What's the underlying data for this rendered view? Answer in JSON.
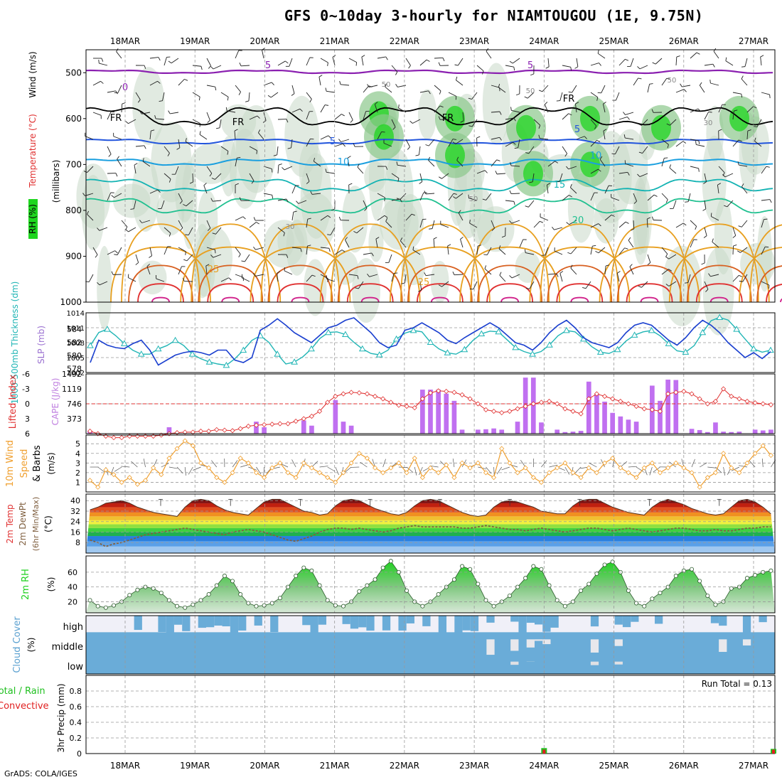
{
  "header": {
    "title": "GFS 0~10day 3-hourly for NIAMTOUGOU (1E, 9.75N)"
  },
  "footer": {
    "credit": "GrADS: COLA/IGES"
  },
  "colors": {
    "rh_green": "#1fd61f",
    "barb": "#202020",
    "freezing": "#000000",
    "temp5": "#8a1fb0",
    "temp_blue": "#2255dd",
    "temp_mid": "#1a9fdf",
    "temp_teal": "#13b3b3",
    "temp_green": "#20c090",
    "temp_orange": "#e8a020",
    "temp_red": "#e03030",
    "slp": "#1a3fcf",
    "thickness": "#20b5b5",
    "lifted": "#e03030",
    "cape": "#c070f0",
    "wind": "#f0a030",
    "rh2m": "#20d020",
    "cloud": "#6aacd8",
    "cloud_bg": "#f0f0f8",
    "precip_total": "#20c020",
    "precip_conv": "#e02020"
  },
  "chart_data": [
    {
      "type": "heatmap",
      "panel": "upper-air",
      "ylabel_parts": [
        "RH (%)",
        "Temperature (°C)",
        "Wind (m/s)"
      ],
      "ylabel_units": "(millibars)",
      "x_dates": [
        "18MAR",
        "19MAR",
        "20MAR",
        "21MAR",
        "22MAR",
        "23MAR",
        "24MAR",
        "25MAR",
        "26MAR",
        "27MAR"
      ],
      "y_ticks": [
        500,
        600,
        700,
        800,
        900,
        1000
      ],
      "ylim": [
        450,
        1000
      ],
      "contour_labels": [
        {
          "text": "5",
          "kind": "temp5"
        },
        {
          "text": "5",
          "kind": "temp5"
        },
        {
          "text": "0",
          "kind": "temp5"
        },
        {
          "text": "FR",
          "kind": "freezing"
        },
        {
          "text": "FR",
          "kind": "freezing"
        },
        {
          "text": "FR",
          "kind": "freezing"
        },
        {
          "text": "FR",
          "kind": "freezing"
        },
        {
          "text": "5",
          "kind": "temp_blue"
        },
        {
          "text": "5",
          "kind": "temp_blue"
        },
        {
          "text": "10",
          "kind": "temp_mid"
        },
        {
          "text": "10",
          "kind": "temp_mid"
        },
        {
          "text": "15",
          "kind": "temp_teal"
        },
        {
          "text": "20",
          "kind": "temp_green"
        },
        {
          "text": "25",
          "kind": "temp_orange"
        },
        {
          "text": "25",
          "kind": "temp_orange"
        },
        {
          "text": "30",
          "kind": "rh"
        },
        {
          "text": "30",
          "kind": "rh"
        },
        {
          "text": "50",
          "kind": "rh"
        },
        {
          "text": "50",
          "kind": "rh"
        },
        {
          "text": "50",
          "kind": "rh"
        },
        {
          "text": "50",
          "kind": "rh"
        }
      ]
    },
    {
      "type": "line",
      "panel": "slp-thickness",
      "ylabel_left": "1000-500mb Thickness (dm)",
      "ylabel_right": "SLP (mb)",
      "left_ticks": [
        578,
        580,
        582,
        584
      ],
      "right_ticks": [
        1002,
        1005,
        1008,
        1011,
        1014
      ],
      "right_ylim": [
        1002,
        1014
      ],
      "left_ylim": [
        577.4,
        586.5
      ],
      "series": [
        {
          "name": "SLP (mb)",
          "values": [
            1004.0,
            1008.5,
            1007.5,
            1007.0,
            1006.8,
            1007.8,
            1008.5,
            1006.5,
            1003.5,
            1004.5,
            1005.5,
            1006.0,
            1006.3,
            1006.0,
            1005.5,
            1006.5,
            1006.5,
            1004.5,
            1004.0,
            1005.0,
            1010.5,
            1011.5,
            1012.8,
            1011.5,
            1010.0,
            1009.0,
            1008.0,
            1009.5,
            1011.0,
            1011.5,
            1012.5,
            1013.0,
            1011.5,
            1010.0,
            1008.0,
            1007.0,
            1007.5,
            1010.5,
            1011.0,
            1012.0,
            1011.0,
            1010.0,
            1008.5,
            1007.8,
            1009.0,
            1010.0,
            1011.0,
            1012.0,
            1011.0,
            1009.5,
            1008.0,
            1007.5,
            1006.5,
            1008.0,
            1010.0,
            1011.5,
            1012.5,
            1011.0,
            1009.0,
            1008.0,
            1007.5,
            1007.0,
            1008.0,
            1010.0,
            1011.5,
            1012.0,
            1011.5,
            1010.0,
            1008.5,
            1007.5,
            1009.0,
            1011.0,
            1012.5,
            1011.5,
            1010.0,
            1008.0,
            1006.5,
            1005.0,
            1006.0,
            1004.8,
            1006.2
          ]
        },
        {
          "name": "Thickness (dm)",
          "values": [
            581.5,
            583.5,
            584.0,
            583.0,
            581.8,
            580.8,
            580.2,
            580.2,
            581.0,
            581.5,
            582.3,
            581.5,
            580.2,
            579.5,
            579.0,
            578.7,
            578.5,
            579.5,
            580.8,
            582.3,
            583.0,
            582.0,
            580.2,
            578.7,
            579.0,
            579.8,
            581.0,
            582.6,
            583.5,
            583.6,
            583.2,
            582.0,
            581.0,
            580.3,
            580.1,
            580.8,
            582.5,
            583.4,
            583.8,
            583.6,
            582.0,
            581.0,
            580.4,
            580.2,
            580.9,
            582.3,
            583.3,
            583.7,
            583.6,
            582.4,
            581.2,
            580.6,
            580.2,
            580.6,
            581.6,
            583.0,
            583.8,
            583.6,
            582.5,
            581.3,
            580.5,
            580.3,
            580.9,
            582.2,
            583.1,
            583.6,
            583.8,
            583.0,
            581.8,
            580.7,
            580.5,
            581.5,
            583.5,
            585.3,
            585.8,
            585.4,
            584.0,
            582.5,
            581.0,
            580.5,
            580.8
          ]
        }
      ]
    },
    {
      "type": "bar",
      "panel": "cape-lifted-index",
      "ylabel_left": "Lifted Index",
      "ylabel_right": "CAPE (J/kg)",
      "li_ticks": [
        6,
        3,
        0,
        -3,
        -6
      ],
      "cape_ticks": [
        373,
        746,
        1119,
        1492
      ],
      "cape_ylim": [
        0,
        1492
      ],
      "series": [
        {
          "name": "CAPE (J/kg)",
          "values": [
            60,
            0,
            0,
            0,
            0,
            0,
            0,
            0,
            0,
            0,
            160,
            0,
            0,
            0,
            0,
            0,
            0,
            0,
            0,
            0,
            0,
            300,
            160,
            0,
            0,
            0,
            0,
            330,
            200,
            0,
            0,
            840,
            300,
            200,
            0,
            0,
            0,
            0,
            0,
            0,
            0,
            0,
            1100,
            1100,
            1100,
            1000,
            820,
            100,
            0,
            100,
            110,
            130,
            100,
            0,
            300,
            1400,
            1400,
            280,
            0,
            100,
            40,
            50,
            70,
            1300,
            980,
            800,
            520,
            430,
            350,
            300,
            0,
            1200,
            820,
            1350,
            1340,
            0,
            120,
            90,
            40,
            280,
            50,
            40,
            50,
            0,
            100,
            80,
            100
          ]
        },
        {
          "name": "Lifted Index",
          "values": [
            5.5,
            6.0,
            6.5,
            6.8,
            6.8,
            6.5,
            6.5,
            6.5,
            6.5,
            6.3,
            6.0,
            5.8,
            5.7,
            5.7,
            5.5,
            5.5,
            5.2,
            5.3,
            5.4,
            5.0,
            4.5,
            4.3,
            4.2,
            4.1,
            4.0,
            4.0,
            3.5,
            3.0,
            2.5,
            1.5,
            -0.3,
            -1.5,
            -2.0,
            -2.3,
            -2.2,
            -2.0,
            -1.5,
            -1.0,
            -0.3,
            0.3,
            0.5,
            0.8,
            -1.0,
            -2.2,
            -2.6,
            -2.5,
            -2.3,
            -1.8,
            -1.0,
            0.0,
            1.2,
            1.5,
            1.8,
            1.5,
            1.0,
            0.5,
            0.0,
            -0.3,
            -0.5,
            0.0,
            1.0,
            1.5,
            2.0,
            -1.0,
            -2.0,
            -1.5,
            -1.0,
            -0.5,
            0.0,
            0.5,
            1.0,
            1.2,
            1.5,
            -2.0,
            -2.3,
            -2.5,
            -2.0,
            -1.0,
            0.0,
            -0.5,
            -3.0,
            -1.5,
            -1.0,
            -0.5,
            -0.2,
            0.0,
            0.2
          ]
        }
      ]
    },
    {
      "type": "line",
      "panel": "wind",
      "ylabel": "10m Wind Speed (m/s) & Barbs",
      "ylim": [
        0,
        5.9
      ],
      "y_ticks": [
        1,
        2,
        3,
        4,
        5
      ],
      "series": [
        {
          "name": "10m Wind Speed (m/s)",
          "values": [
            1.2,
            0.5,
            2.3,
            1.8,
            1.0,
            1.5,
            0.8,
            1.2,
            2.5,
            1.8,
            3.5,
            4.5,
            5.3,
            4.8,
            3.0,
            2.5,
            1.5,
            1.0,
            2.0,
            3.5,
            3.0,
            2.0,
            1.5,
            2.5,
            3.0,
            2.0,
            1.5,
            3.0,
            2.5,
            2.0,
            1.5,
            1.0,
            2.0,
            3.0,
            4.0,
            3.5,
            2.5,
            2.0,
            2.5,
            3.0,
            2.0,
            3.5,
            1.5,
            2.5,
            2.0,
            2.8,
            1.5,
            3.0,
            2.5,
            3.0,
            2.0,
            1.5,
            4.5,
            3.0,
            2.0,
            2.5,
            1.5,
            1.0,
            2.0,
            2.5,
            3.0,
            2.0,
            1.5,
            2.5,
            2.0,
            3.0,
            3.5,
            2.5,
            2.0,
            1.5,
            2.5,
            3.0,
            2.0,
            2.5,
            3.0,
            2.5,
            2.0,
            0.5,
            1.5,
            2.0,
            4.0,
            2.5,
            2.0,
            3.0,
            4.0,
            4.8,
            3.8
          ]
        }
      ]
    },
    {
      "type": "area",
      "panel": "temp-dewpoint",
      "ylabel": "2m Temp 2m DewPt (6hr Min/Max) (°C)",
      "y_ticks": [
        8,
        16,
        24,
        32,
        40
      ],
      "ylim": [
        0,
        45
      ],
      "series": [
        {
          "name": "2m Temp (°C)",
          "values": [
            33,
            35,
            38,
            39,
            40,
            38,
            35,
            33,
            31,
            30,
            29,
            28,
            35,
            40,
            41,
            40,
            36,
            33,
            31,
            30,
            29,
            34,
            39,
            41,
            41,
            38,
            35,
            32,
            31,
            29,
            30,
            36,
            40,
            41,
            40,
            37,
            34,
            32,
            30,
            29,
            31,
            36,
            40,
            41,
            40,
            37,
            34,
            31,
            29,
            28,
            29,
            35,
            39,
            40,
            39,
            37,
            35,
            32,
            31,
            30,
            30,
            36,
            40,
            41,
            41,
            38,
            35,
            33,
            31,
            30,
            29,
            35,
            39,
            41,
            39,
            37,
            34,
            32,
            30,
            29,
            30,
            35,
            40,
            41,
            39,
            35,
            30
          ]
        },
        {
          "name": "2m DewPt (°C)",
          "values": [
            10,
            8,
            5,
            7,
            8,
            10,
            12,
            14,
            15,
            16,
            17,
            18,
            19,
            18,
            17,
            16,
            15,
            14,
            16,
            17,
            18,
            17,
            16,
            14,
            12,
            10,
            9,
            11,
            13,
            16,
            18,
            19,
            19,
            18,
            19,
            18,
            17,
            16,
            17,
            19,
            20,
            21,
            20,
            20,
            20,
            20,
            20,
            19,
            19,
            20,
            21,
            20,
            19,
            18,
            18,
            17,
            18,
            19,
            18,
            17,
            16,
            17,
            18,
            19,
            19,
            18,
            17,
            18,
            19,
            18,
            17,
            16,
            17,
            18,
            19,
            19,
            18,
            17,
            17,
            18,
            17,
            17,
            18,
            19,
            19,
            20,
            20
          ]
        }
      ]
    },
    {
      "type": "area",
      "panel": "rh2m",
      "ylabel": "2m RH (%)",
      "y_ticks": [
        20,
        40,
        60
      ],
      "ylim": [
        5,
        82
      ],
      "series": [
        {
          "name": "2m RH (%)",
          "values": [
            22,
            14,
            12,
            15,
            20,
            29,
            36,
            40,
            38,
            32,
            22,
            14,
            12,
            16,
            22,
            30,
            42,
            55,
            48,
            30,
            18,
            14,
            15,
            18,
            25,
            40,
            55,
            66,
            62,
            42,
            22,
            15,
            14,
            20,
            34,
            42,
            50,
            66,
            75,
            60,
            35,
            20,
            14,
            20,
            30,
            40,
            50,
            68,
            64,
            44,
            22,
            14,
            20,
            28,
            40,
            52,
            68,
            64,
            42,
            22,
            14,
            20,
            35,
            44,
            58,
            70,
            74,
            60,
            35,
            18,
            14,
            24,
            32,
            40,
            55,
            62,
            64,
            48,
            28,
            16,
            20,
            38,
            40,
            52,
            56,
            60,
            62
          ]
        }
      ]
    },
    {
      "type": "bar",
      "panel": "cloud-cover",
      "ylabel": "Cloud Cover (%)",
      "levels": [
        "high",
        "middle",
        "low"
      ]
    },
    {
      "type": "bar",
      "panel": "precip",
      "ylabel_left": "Total / Rain",
      "ylabel_conv": "Convective",
      "ylabel": "3hr Precip (mm)",
      "y_ticks": [
        "0",
        "0.2",
        "0.4",
        "0.6",
        "0.8"
      ],
      "ylim": [
        0,
        1.0
      ],
      "run_total": "Run Total = 0.13",
      "series": [
        {
          "name": "Total / Rain",
          "points": [
            {
              "x": "24MAR",
              "value": 0.07
            },
            {
              "x": "27MAR",
              "value": 0.06
            }
          ]
        },
        {
          "name": "Convective",
          "points": [
            {
              "x": "24MAR",
              "value": 0.05
            },
            {
              "x": "27MAR",
              "value": 0.05
            }
          ]
        }
      ]
    }
  ]
}
